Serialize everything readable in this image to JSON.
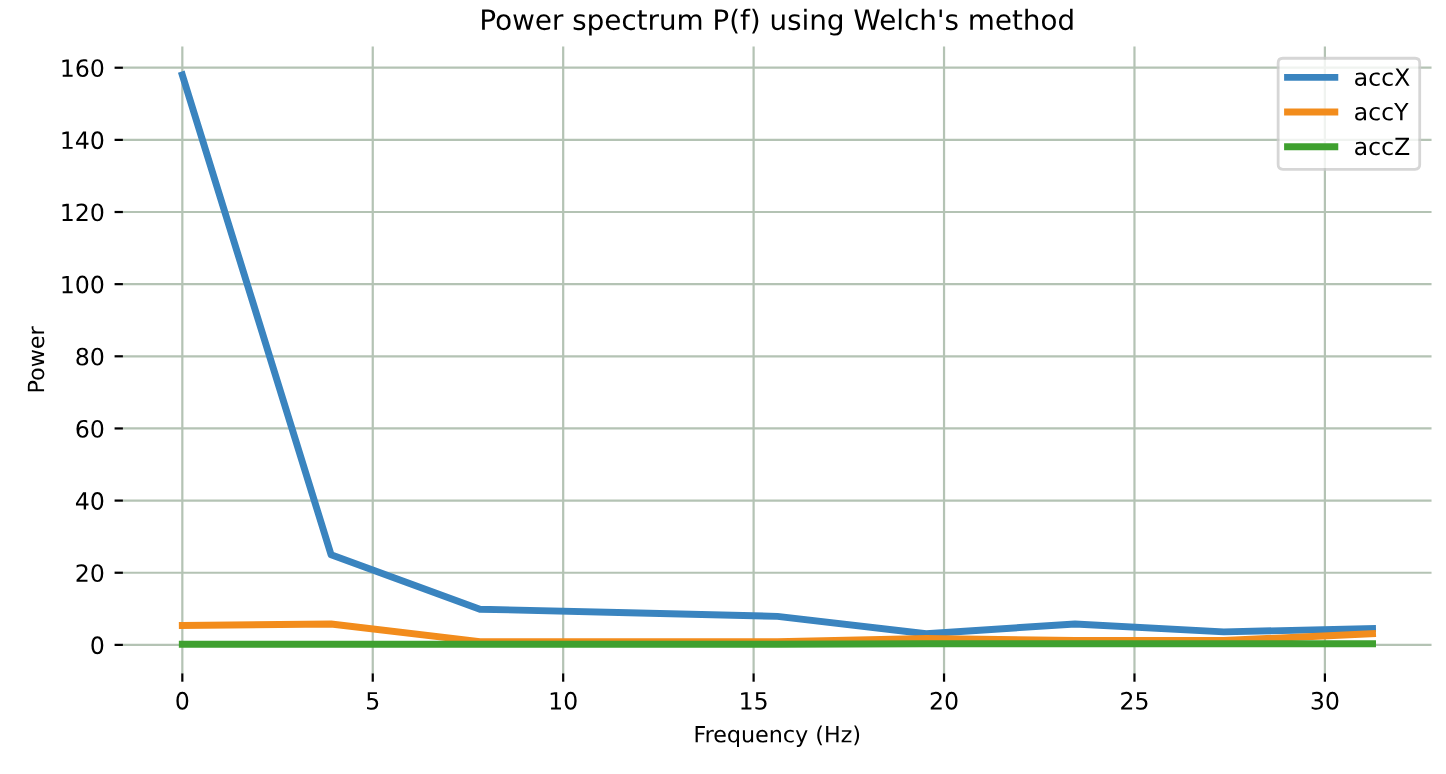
{
  "chart_data": {
    "type": "line",
    "title": "Power spectrum P(f) using Welch's method",
    "xlabel": "Frequency (Hz)",
    "ylabel": "Power",
    "x": [
      0,
      3.906,
      7.813,
      11.719,
      15.625,
      19.531,
      23.438,
      27.344,
      31.25
    ],
    "series": [
      {
        "name": "accX",
        "color": "#3a84bf",
        "values": [
          158,
          25,
          9.9,
          8.9,
          7.9,
          3.1,
          5.8,
          3.6,
          4.5
        ]
      },
      {
        "name": "accY",
        "color": "#f28c1c",
        "values": [
          5.4,
          5.8,
          0.9,
          0.9,
          0.9,
          1.8,
          1.2,
          1.2,
          3.1
        ]
      },
      {
        "name": "accZ",
        "color": "#3fa02f",
        "values": [
          0.2,
          0.2,
          0.2,
          0.2,
          0.2,
          0.3,
          0.3,
          0.3,
          0.3
        ]
      }
    ],
    "xlim": [
      -1.56,
      32.8
    ],
    "ylim": [
      -7.9,
      165.9
    ],
    "xticks": [
      0,
      5,
      10,
      15,
      20,
      25,
      30
    ],
    "yticks": [
      0,
      20,
      40,
      60,
      80,
      100,
      120,
      140,
      160
    ],
    "grid": true,
    "legend": "top right",
    "line_style": "solid",
    "marker": "none"
  }
}
